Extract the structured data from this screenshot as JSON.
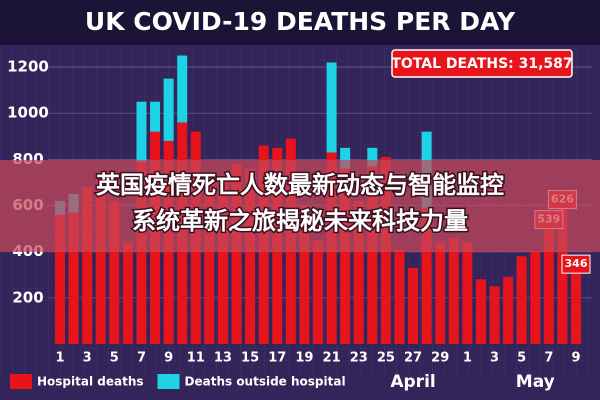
{
  "chart_data": {
    "type": "stacked_bar",
    "title": "UK COVID-19 DEATHS PER DAY",
    "annotation": "TOTAL DEATHS: 31,587",
    "categories": [
      "1",
      null,
      "3",
      null,
      "5",
      null,
      "7",
      null,
      "9",
      null,
      "11",
      null,
      "13",
      null,
      "15",
      null,
      "17",
      null,
      "19",
      null,
      "21",
      null,
      "23",
      null,
      "25",
      null,
      "27",
      null,
      "29",
      null,
      "1",
      null,
      "3",
      null,
      "5",
      null,
      "7",
      null,
      "9"
    ],
    "x_group_labels": [
      "April",
      "May"
    ],
    "series": [
      {
        "name": "Hospital deaths",
        "color": "#e8141c",
        "values": [
          560,
          570,
          680,
          710,
          620,
          440,
          790,
          920,
          880,
          960,
          920,
          740,
          720,
          780,
          760,
          860,
          850,
          890,
          600,
          450,
          830,
          760,
          620,
          770,
          810,
          410,
          330,
          590,
          440,
          460,
          440,
          280,
          250,
          290,
          380,
          400,
          539,
          626,
          346
        ]
      },
      {
        "name": "Deaths outside hospital",
        "color": "#1fd3e6",
        "values": [
          60,
          80,
          0,
          0,
          0,
          0,
          260,
          130,
          270,
          290,
          0,
          0,
          0,
          0,
          0,
          0,
          0,
          0,
          0,
          0,
          390,
          90,
          0,
          80,
          0,
          0,
          0,
          330,
          0,
          0,
          0,
          0,
          0,
          0,
          0,
          0,
          0,
          0,
          0
        ]
      }
    ],
    "labeled_points": [
      36,
      37,
      38
    ],
    "ylim": [
      0,
      1300
    ],
    "yticks": [
      200,
      400,
      600,
      800,
      1000,
      1200
    ],
    "grid": true,
    "legend": "bottom-left"
  },
  "overlay": {
    "lines": [
      "英国疫情死亡人数最新动态与智能监控",
      "系统革新之旅揭秘未来科技力量"
    ]
  }
}
